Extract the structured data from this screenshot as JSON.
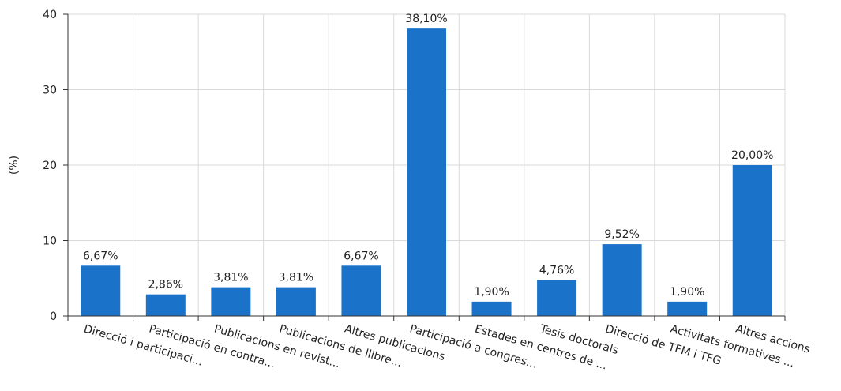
{
  "chart_data": {
    "type": "bar",
    "ylabel": "(%)",
    "ylim": [
      0,
      40
    ],
    "yticks": [
      0,
      10,
      20,
      30,
      40
    ],
    "grid": true,
    "bar_color": "#1a73c9",
    "grid_color": "#d9d9d9",
    "categories": [
      "Direcció i participaci...",
      "Participació en contra...",
      "Publicacions en revist...",
      "Publicacions de llibre...",
      "Altres publicacions",
      "Participació a congres...",
      "Estades en centres de ...",
      "Tesis doctorals",
      "Direcció de TFM i TFG",
      "Activitats formatives ...",
      "Altres accions"
    ],
    "values": [
      6.67,
      2.86,
      3.81,
      3.81,
      6.67,
      38.1,
      1.9,
      4.76,
      9.52,
      1.9,
      20.0
    ],
    "data_labels": [
      "6,67%",
      "2,86%",
      "3,81%",
      "3,81%",
      "6,67%",
      "38,10%",
      "1,90%",
      "4,76%",
      "9,52%",
      "1,90%",
      "20,00%"
    ]
  }
}
